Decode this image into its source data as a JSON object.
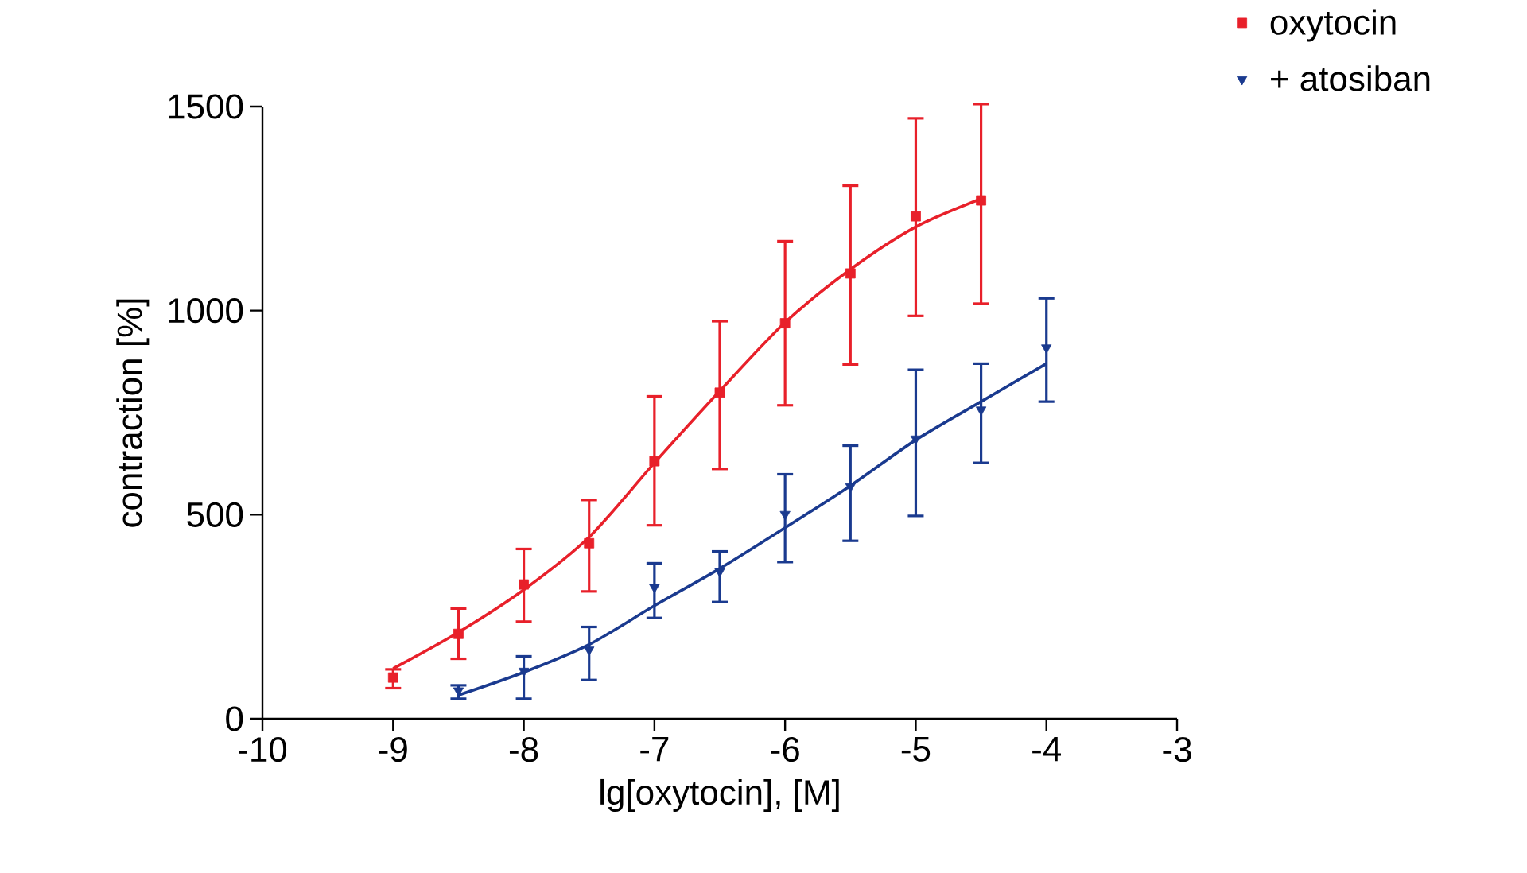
{
  "chart_data": {
    "type": "scatter",
    "xlabel": "lg[oxytocin], [M]",
    "ylabel": "contraction [%]",
    "xlim": [
      -10,
      -3
    ],
    "xticks": [
      -10,
      -9,
      -8,
      -7,
      -6,
      -5,
      -4,
      -3
    ],
    "ylim": [
      0,
      1500
    ],
    "yticks": [
      0,
      500,
      1000,
      1500
    ],
    "grid": false,
    "legend": "top right",
    "series": [
      {
        "name": "oxytocin",
        "type": "scatter",
        "marker": "square",
        "color": "#e8202a",
        "x": [
          -9,
          -8.5,
          -8,
          -7.5,
          -7,
          -6.5,
          -6,
          -5.5,
          -5,
          -4.5
        ],
        "values": [
          101,
          208,
          329,
          430,
          631,
          799,
          969,
          1091,
          1231,
          1270
        ],
        "errors": [
          [
            75,
            121
          ],
          [
            147,
            270
          ],
          [
            238,
            416
          ],
          [
            312,
            536
          ],
          [
            474,
            790
          ],
          [
            612,
            974
          ],
          [
            768,
            1170
          ],
          [
            868,
            1306
          ],
          [
            987,
            1471
          ],
          [
            1017,
            1506
          ]
        ]
      },
      {
        "name": "+ atosiban",
        "type": "scatter",
        "marker": "triangle",
        "color": "#1a3a8f",
        "x": [
          -8.5,
          -8,
          -7.5,
          -7,
          -6.5,
          -6,
          -5.5,
          -5,
          -4.5,
          -4
        ],
        "values": [
          69,
          117,
          169,
          322,
          361,
          501,
          569,
          686,
          757,
          909
        ],
        "errors": [
          [
            49,
            82
          ],
          [
            49,
            153
          ],
          [
            95,
            225
          ],
          [
            247,
            381
          ],
          [
            286,
            410
          ],
          [
            384,
            599
          ],
          [
            436,
            669
          ],
          [
            497,
            855
          ],
          [
            627,
            870
          ],
          [
            777,
            1030
          ]
        ]
      },
      {
        "type": "line",
        "line_style": "solid",
        "color": "#e8202a",
        "x": [
          -9,
          -8.5,
          -8,
          -7.5,
          -7,
          -6.5,
          -6,
          -5.5,
          -5,
          -4.5
        ],
        "values": [
          123,
          212,
          316,
          445,
          627,
          803,
          971,
          1101,
          1205,
          1274
        ]
      },
      {
        "type": "line",
        "line_style": "solid",
        "color": "#1a3a8f",
        "x": [
          -8.5,
          -8,
          -7.5,
          -7,
          -6.5,
          -6,
          -5.5,
          -5,
          -4.5,
          -4
        ],
        "values": [
          58,
          114,
          182,
          277,
          368,
          468,
          571,
          683,
          777,
          870
        ]
      }
    ]
  }
}
